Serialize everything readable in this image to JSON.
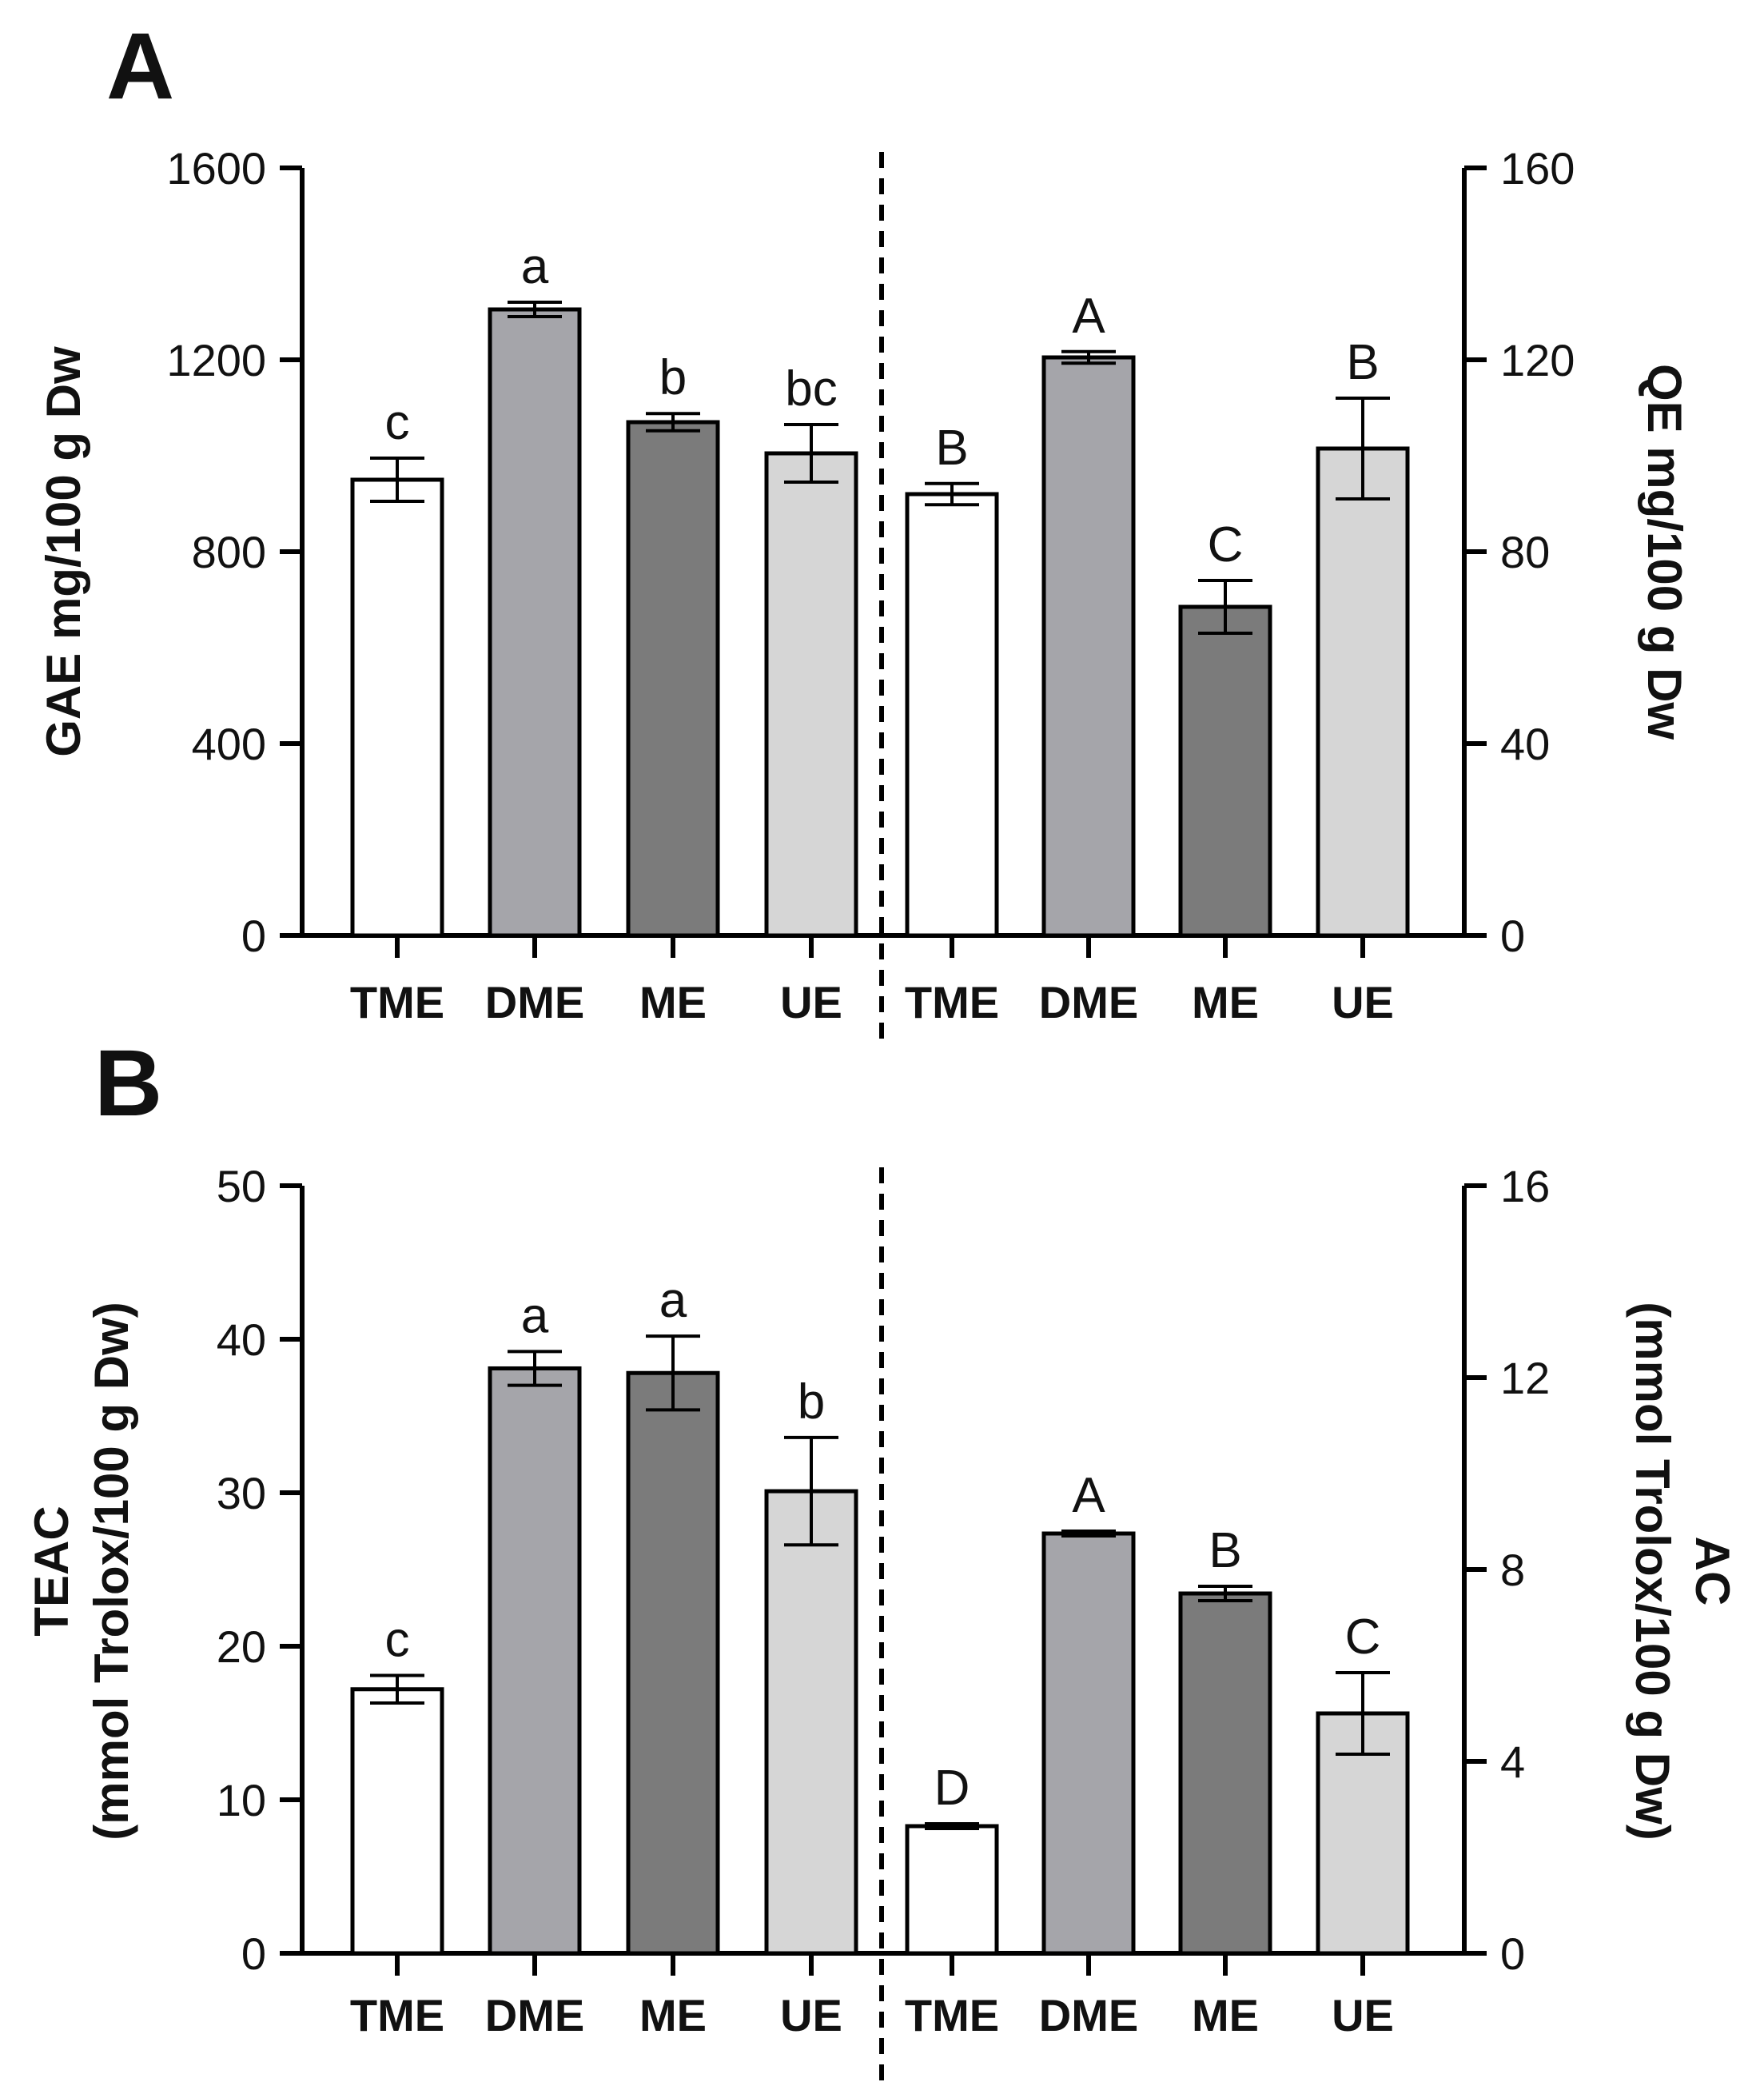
{
  "colors": {
    "TME": "#ffffff",
    "DME": "#a5a5aa",
    "ME": "#7b7b7b",
    "UE": "#d6d6d6"
  },
  "chart_data": [
    {
      "panel": "A",
      "type": "bar",
      "categories": [
        "TME",
        "DME",
        "ME",
        "UE"
      ],
      "left": {
        "ylabel": "GAE mg/100 g Dw",
        "ylim": [
          0,
          1600
        ],
        "ticks": [
          0,
          400,
          800,
          1200,
          1600
        ],
        "values": [
          950,
          1305,
          1070,
          1005
        ],
        "errors": [
          45,
          15,
          18,
          60
        ],
        "letters": [
          "c",
          "a",
          "b",
          "bc"
        ]
      },
      "right": {
        "ylabel": "QE mg/100 g Dw",
        "ylim": [
          0,
          160
        ],
        "ticks": [
          0,
          40,
          80,
          120,
          160
        ],
        "values": [
          92,
          120.5,
          68.5,
          101.5
        ],
        "errors": [
          2.2,
          1.2,
          5.5,
          10.5
        ],
        "letters": [
          "B",
          "A",
          "C",
          "B"
        ]
      }
    },
    {
      "panel": "B",
      "type": "bar",
      "categories": [
        "TME",
        "DME",
        "ME",
        "UE"
      ],
      "left": {
        "ylabel": "TEAC",
        "ylabel2": "(mmol Trolox/100 g Dw)",
        "ylim": [
          0,
          50
        ],
        "ticks": [
          0,
          10,
          20,
          30,
          40,
          50
        ],
        "values": [
          17.2,
          38.1,
          37.8,
          30.1
        ],
        "errors": [
          0.9,
          1.1,
          2.4,
          3.5
        ],
        "letters": [
          "c",
          "a",
          "a",
          "b"
        ]
      },
      "right": {
        "ylabel": "AC",
        "ylabel2": "(mmol Trolox/100 g Dw)",
        "ylim": [
          0,
          16
        ],
        "ticks": [
          0,
          4,
          8,
          12,
          16
        ],
        "values": [
          2.65,
          8.75,
          7.5,
          5.0
        ],
        "errors": [
          0.05,
          0.05,
          0.15,
          0.85
        ],
        "letters": [
          "D",
          "A",
          "B",
          "C"
        ]
      }
    }
  ]
}
